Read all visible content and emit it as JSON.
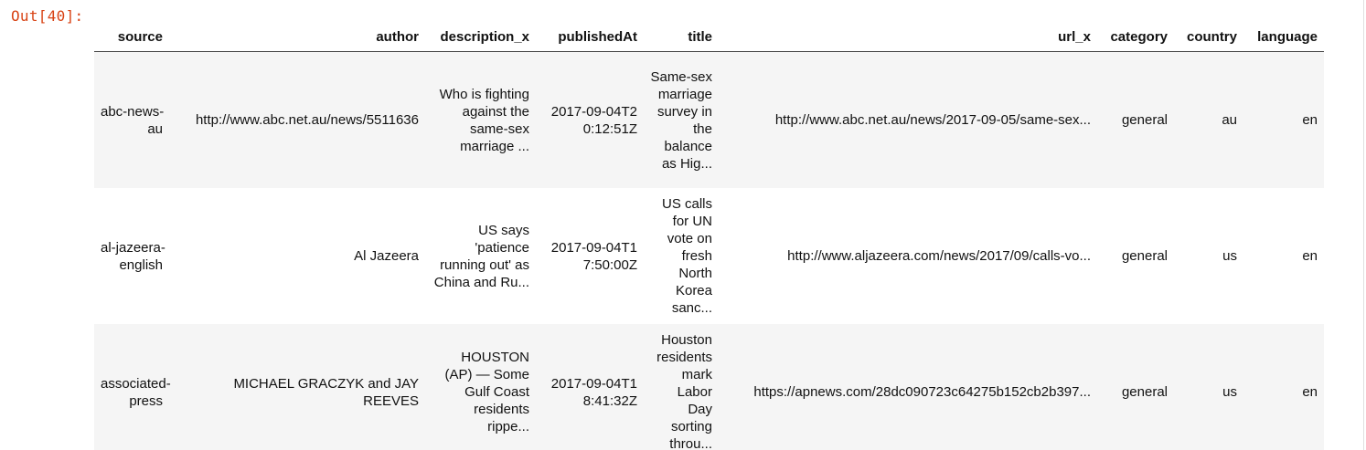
{
  "prompt": "Out[40]:",
  "columns": [
    "source",
    "author",
    "description_x",
    "publishedAt",
    "title",
    "url_x",
    "category",
    "country",
    "language"
  ],
  "rows": [
    {
      "source": "abc-news-\nau",
      "author": "http://www.abc.net.au/news/5511636",
      "description_x": "Who is fighting against the same-sex marriage ...",
      "publishedAt": "2017-09-04T20:12:51Z",
      "title": "Same-sex marriage survey in the balance as Hig...",
      "url_x": "http://www.abc.net.au/news/2017-09-05/same-sex...",
      "category": "general",
      "country": "au",
      "language": "en"
    },
    {
      "source": "al-jazeera-\nenglish",
      "author": "Al Jazeera",
      "description_x": "US says 'patience running out' as China and Ru...",
      "publishedAt": "2017-09-04T17:50:00Z",
      "title": "US calls for UN vote on fresh North Korea sanc...",
      "url_x": "http://www.aljazeera.com/news/2017/09/calls-vo...",
      "category": "general",
      "country": "us",
      "language": "en"
    },
    {
      "source": "associated-\npress",
      "author": "MICHAEL GRACZYK and JAY REEVES",
      "description_x": "HOUSTON (AP) — Some Gulf Coast residents rippe...",
      "publishedAt": "2017-09-04T18:41:32Z",
      "title": "Houston residents mark Labor Day sorting throu...",
      "url_x": "https://apnews.com/28dc090723c64275b152cb2b397...",
      "category": "general",
      "country": "us",
      "language": "en"
    }
  ]
}
